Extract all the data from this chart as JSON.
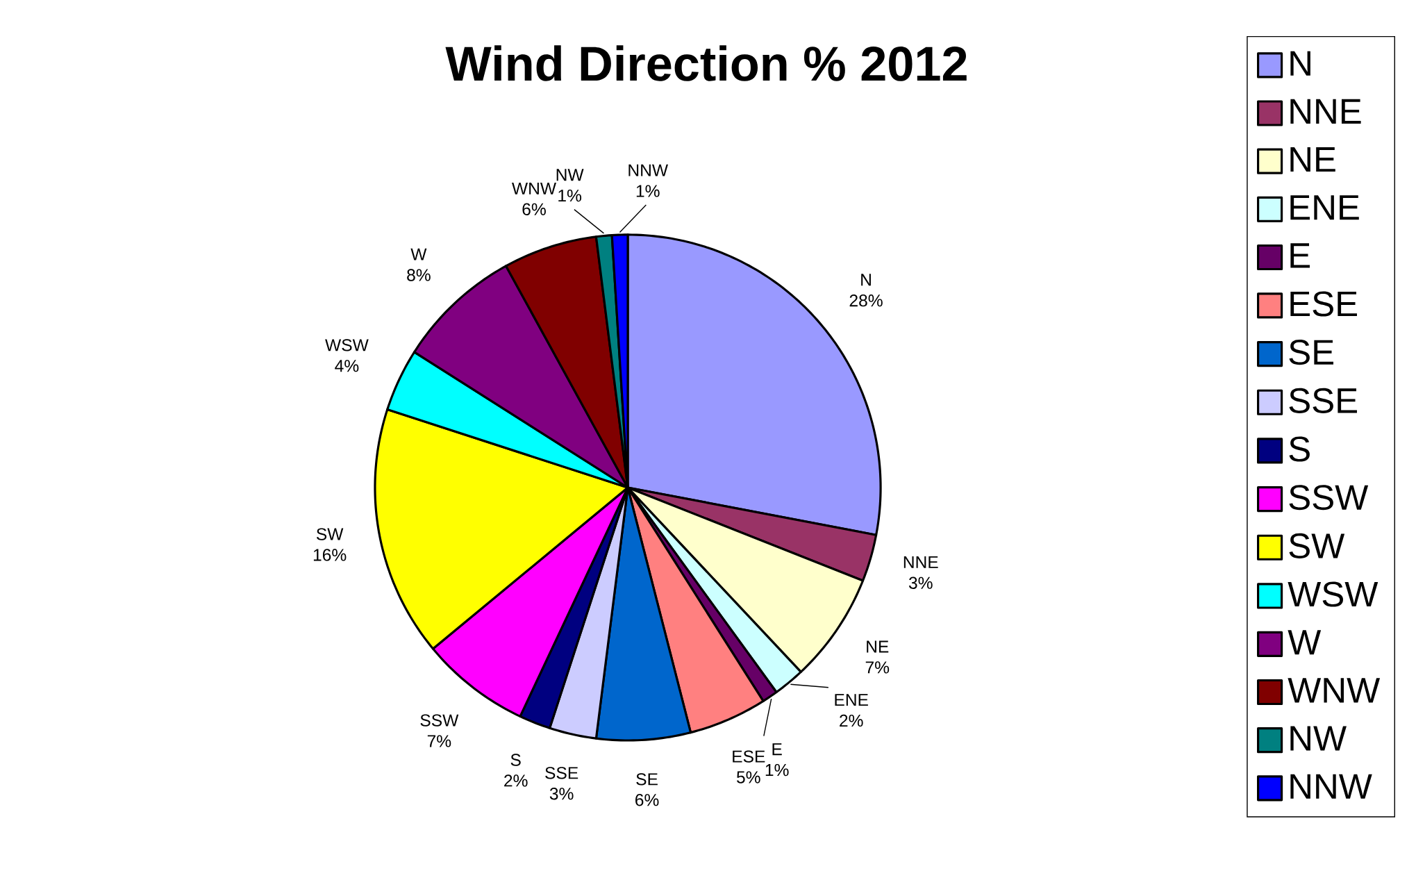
{
  "chart_data": {
    "type": "pie",
    "title": "Wind Direction % 2012",
    "categories": [
      "N",
      "NNE",
      "NE",
      "ENE",
      "E",
      "ESE",
      "SE",
      "SSE",
      "S",
      "SSW",
      "SW",
      "WSW",
      "W",
      "WNW",
      "NW",
      "NNW"
    ],
    "values": [
      28,
      3,
      7,
      2,
      1,
      5,
      6,
      3,
      2,
      7,
      16,
      4,
      8,
      6,
      1,
      1
    ],
    "value_labels": [
      "28%",
      "3%",
      "7%",
      "2%",
      "1%",
      "5%",
      "6%",
      "3%",
      "2%",
      "7%",
      "16%",
      "4%",
      "8%",
      "6%",
      "1%",
      "1%"
    ],
    "colors": [
      "#9999ff",
      "#993366",
      "#ffffcc",
      "#ccffff",
      "#660066",
      "#ff8080",
      "#0066cc",
      "#ccccff",
      "#000080",
      "#ff00ff",
      "#ffff00",
      "#00ffff",
      "#800080",
      "#800000",
      "#008080",
      "#0000ff"
    ],
    "legend": "right"
  }
}
